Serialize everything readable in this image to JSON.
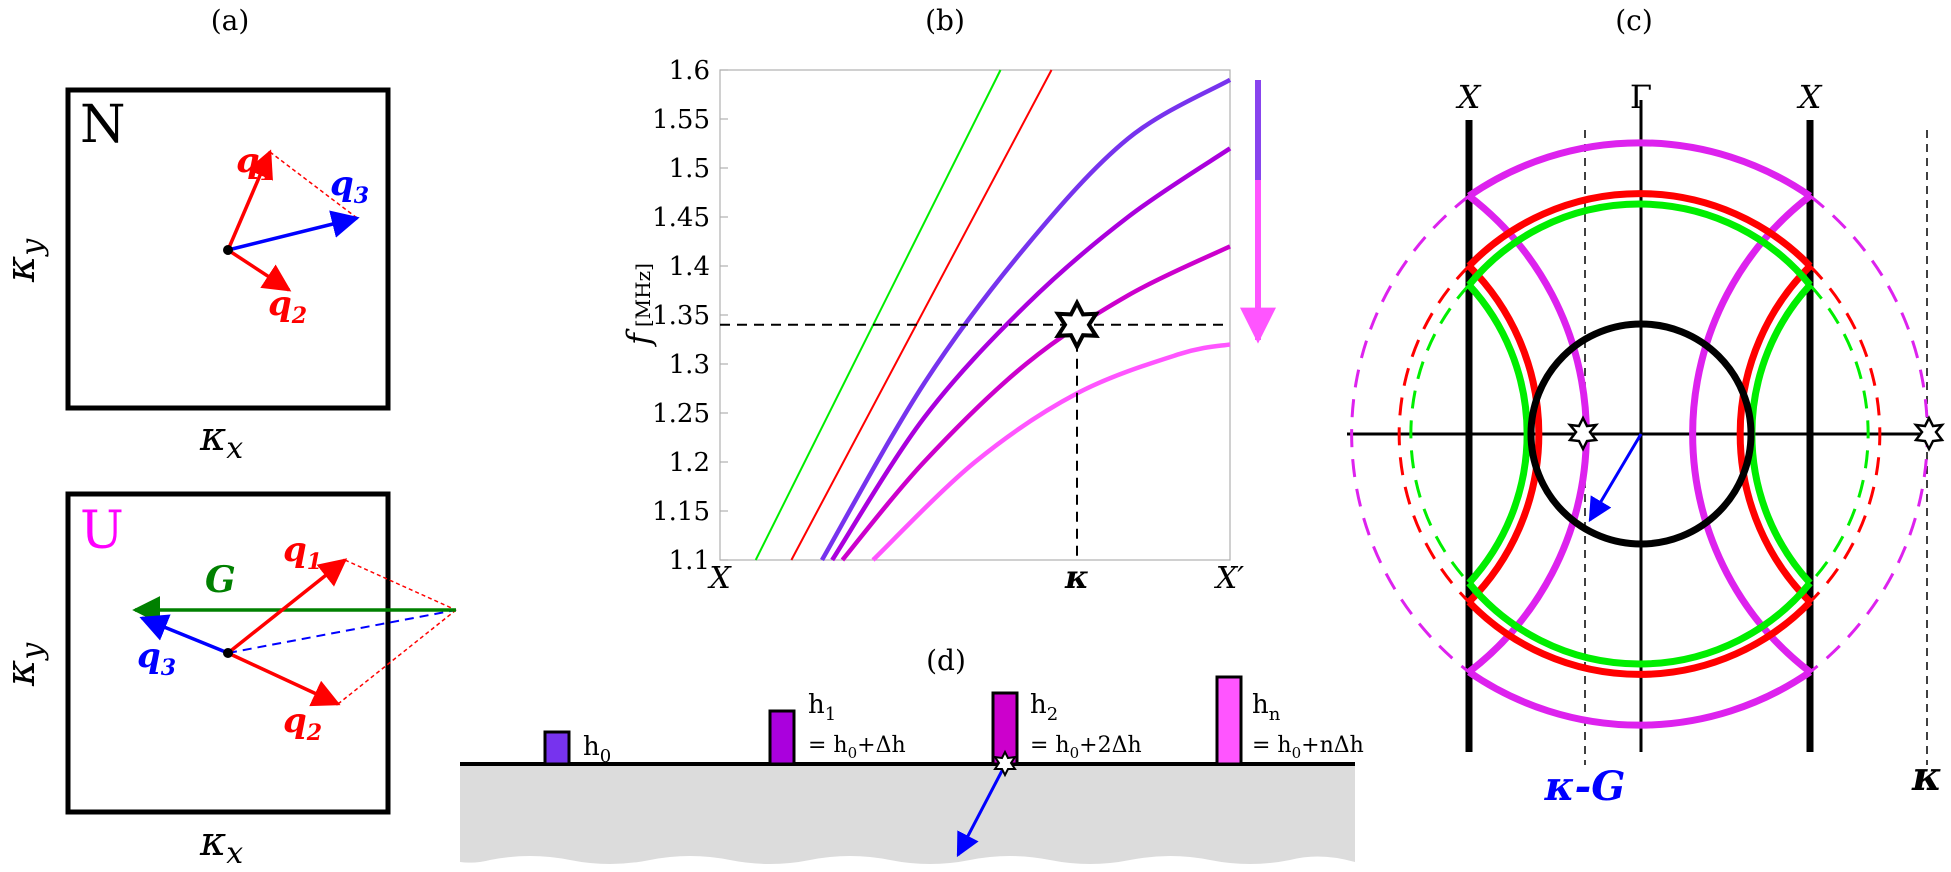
{
  "panels": {
    "a": {
      "label": "(a)",
      "top_box": {
        "tag": "N",
        "x_label": "κ",
        "x_sub": "x",
        "y_label": "κ",
        "y_sub": "y",
        "vectors": {
          "q1": {
            "text": "q",
            "sub": "1"
          },
          "q2": {
            "text": "q",
            "sub": "2"
          },
          "q3": {
            "text": "q",
            "sub": "3"
          }
        }
      },
      "bottom_box": {
        "tag": "U",
        "x_label": "κ",
        "x_sub": "x",
        "y_label": "κ",
        "y_sub": "y",
        "vectors": {
          "G": {
            "text": "G"
          },
          "q1": {
            "text": "q",
            "sub": "1"
          },
          "q2": {
            "text": "q",
            "sub": "2"
          },
          "q3": {
            "text": "q",
            "sub": "3"
          }
        }
      }
    },
    "b": {
      "label": "(b)",
      "x_ticks": {
        "start": "X",
        "mid": "κ",
        "end": "X′"
      },
      "y_label": "f",
      "y_unit": "[MHz]",
      "y_tick_labels": [
        "1.1",
        "1.15",
        "1.2",
        "1.25",
        "1.3",
        "1.35",
        "1.4",
        "1.45",
        "1.5",
        "1.55",
        "1.6"
      ]
    },
    "c": {
      "label": "(c)",
      "labels": {
        "x_left": "X",
        "gamma": "Γ",
        "x_right": "X",
        "kappa_minus_g": "κ-G",
        "kappa": "κ"
      }
    },
    "d": {
      "label": "(d)",
      "pillars": [
        {
          "name": "h",
          "sub": "0",
          "eq": ""
        },
        {
          "name": "h",
          "sub": "1",
          "eq_pre": "= h",
          "eq_sub": "0",
          "eq_post": "+Δh"
        },
        {
          "name": "h",
          "sub": "2",
          "eq_pre": "= h",
          "eq_sub": "0",
          "eq_post": "+2Δh"
        },
        {
          "name": "h",
          "sub": "n",
          "eq_pre": "= h",
          "eq_sub": "0",
          "eq_post": "+nΔh"
        }
      ]
    }
  },
  "colors": {
    "red": "#ff0000",
    "blue": "#0000ff",
    "green_dark": "#008000",
    "green_bright": "#00ee00",
    "magenta": "#ff00ff",
    "purple_h0": "#7733ee",
    "purple_h1": "#aa00dd",
    "purple_h2": "#cc00cc",
    "pink_hn": "#ff55ff",
    "substrate": "#dcdcdc"
  },
  "chart_data": {
    "type": "line",
    "title": "(b)",
    "xlabel": "",
    "ylabel": "f [MHz]",
    "ylim": [
      1.1,
      1.6
    ],
    "x_ticks": [
      "X",
      "κ",
      "X′"
    ],
    "x_range": [
      0,
      1
    ],
    "kappa_x": 0.7,
    "series": [
      {
        "name": "green line",
        "color": "#00ee00",
        "x": [
          0.07,
          0.55
        ],
        "y": [
          1.1,
          1.6
        ]
      },
      {
        "name": "red line",
        "color": "#ff0000",
        "x": [
          0.14,
          0.65
        ],
        "y": [
          1.1,
          1.6
        ]
      },
      {
        "name": "h0",
        "color": "#7733ee",
        "x": [
          0.2,
          0.4,
          0.6,
          0.8,
          1.0
        ],
        "y": [
          1.1,
          1.28,
          1.42,
          1.53,
          1.59
        ]
      },
      {
        "name": "h1",
        "color": "#aa00dd",
        "x": [
          0.22,
          0.4,
          0.6,
          0.8,
          1.0
        ],
        "y": [
          1.1,
          1.245,
          1.36,
          1.45,
          1.52
        ]
      },
      {
        "name": "h2",
        "color": "#cc00cc",
        "x": [
          0.24,
          0.4,
          0.6,
          0.8,
          1.0
        ],
        "y": [
          1.1,
          1.2,
          1.3,
          1.37,
          1.42
        ]
      },
      {
        "name": "hn",
        "color": "#ff55ff",
        "x": [
          0.3,
          0.5,
          0.7,
          0.9,
          1.0
        ],
        "y": [
          1.1,
          1.2,
          1.27,
          1.31,
          1.32
        ]
      }
    ],
    "dashed_level": 1.34,
    "marker": {
      "x": 0.7,
      "y": 1.34
    }
  }
}
